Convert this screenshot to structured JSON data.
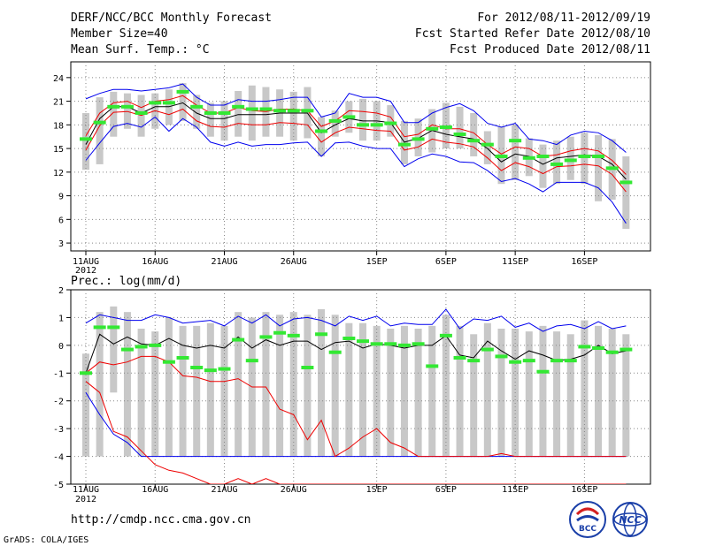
{
  "header": {
    "title": "DERF/NCC/BCC Monthly Forecast",
    "member_size": "Member Size=40",
    "variable": "Mean Surf. Temp.: °C",
    "forecast_period": "For 2012/08/11-2012/09/19",
    "fcst_started": "Fcst Started Refer Date 2012/08/10",
    "fcst_produced": "Fcst Produced Date 2012/08/11"
  },
  "footer": {
    "url": "http://cmdp.ncc.cma.gov.cn",
    "grads": "GrADS: COLA/IGES",
    "logo_bcc": "BCC",
    "logo_ncc": "NCC"
  },
  "colors": {
    "bar": "#c8c8c8",
    "mean": "#000000",
    "max_min": "#0000ee",
    "spread": "#ee0000",
    "obs": "#33e833",
    "grid": "#888888"
  },
  "chart_data": [
    {
      "type": "line",
      "title": "Mean Surf. Temp.: °C",
      "x_tick_labels": [
        "11AUG",
        "16AUG",
        "21AUG",
        "26AUG",
        "1SEP",
        "6SEP",
        "11SEP",
        "16SEP"
      ],
      "x_tick_days": [
        1,
        6,
        11,
        16,
        22,
        27,
        32,
        37
      ],
      "year_label": "2012",
      "y_ticks": [
        3,
        6,
        9,
        12,
        15,
        18,
        21,
        24
      ],
      "ylim": [
        2,
        26
      ],
      "days": [
        1,
        2,
        3,
        4,
        5,
        6,
        7,
        8,
        9,
        10,
        11,
        12,
        13,
        14,
        15,
        16,
        17,
        18,
        19,
        20,
        21,
        22,
        23,
        24,
        25,
        26,
        27,
        28,
        29,
        30,
        31,
        32,
        33,
        34,
        35,
        36,
        37,
        38,
        39,
        40
      ],
      "series": [
        {
          "name": "max",
          "values": [
            21.3,
            22,
            22.5,
            22.5,
            22.3,
            22.5,
            22.7,
            23.2,
            21.5,
            20.5,
            20.5,
            21.2,
            21,
            21,
            21.2,
            21.5,
            21.5,
            19,
            19.5,
            22,
            21.5,
            21.5,
            21,
            18.3,
            18.3,
            19.5,
            20.2,
            20.7,
            19.8,
            18.2,
            17.7,
            18.2,
            16.2,
            16,
            15.5,
            16.7,
            17.2,
            17,
            16,
            14.5
          ]
        },
        {
          "name": "spread_upper",
          "values": [
            16.6,
            19.5,
            20.8,
            21,
            20.2,
            21,
            21.2,
            21.7,
            20.5,
            19.5,
            19.5,
            20.2,
            19.8,
            19.7,
            20,
            20,
            19.8,
            17.8,
            18.5,
            19.8,
            19.7,
            19.5,
            19,
            16.5,
            16.8,
            18,
            17.5,
            17.5,
            17,
            15.5,
            14.3,
            15.2,
            15,
            14,
            14.2,
            14.7,
            15,
            14.7,
            13.5,
            11.7
          ]
        },
        {
          "name": "mean",
          "values": [
            15.5,
            18.8,
            20.3,
            20.3,
            19.5,
            20.3,
            20.3,
            20.8,
            19.5,
            18.8,
            18.8,
            19.3,
            19.3,
            19.3,
            19.5,
            19.5,
            19.5,
            17,
            18,
            18.8,
            18.5,
            18.5,
            18.3,
            15.8,
            16.3,
            17.3,
            16.8,
            16.5,
            16.2,
            15,
            13.3,
            14.3,
            14,
            13,
            13.8,
            14,
            14.2,
            14,
            13,
            11.1
          ]
        },
        {
          "name": "spread_lower",
          "values": [
            14.8,
            17.9,
            19.6,
            19.7,
            19.2,
            19.8,
            19.3,
            20,
            18.5,
            17.8,
            17.7,
            18.2,
            18,
            18,
            18.3,
            18.2,
            18,
            15.8,
            17,
            17.7,
            17.5,
            17.3,
            17.2,
            14.8,
            15.2,
            16.2,
            15.8,
            15.6,
            15.2,
            13.8,
            12.2,
            13.2,
            12.7,
            11.8,
            12.7,
            12.8,
            13,
            12.8,
            11.7,
            9.5
          ]
        },
        {
          "name": "min",
          "values": [
            13.5,
            15.7,
            17.8,
            18.2,
            17.7,
            19,
            17.2,
            18.8,
            17.7,
            15.8,
            15.3,
            15.8,
            15.3,
            15.5,
            15.5,
            15.7,
            15.8,
            14,
            15.7,
            15.8,
            15.3,
            15,
            15,
            12.7,
            13.7,
            14.3,
            14,
            13.3,
            13.2,
            12.2,
            10.8,
            11.2,
            10.5,
            9.5,
            10.7,
            10.7,
            10.7,
            10,
            8.2,
            5.5
          ]
        },
        {
          "name": "observed",
          "values": [
            16.2,
            18.3,
            20.3,
            20.3,
            19.5,
            20.8,
            20.8,
            22.2,
            20.3,
            19.5,
            19.5,
            20.3,
            20,
            20,
            19.8,
            19.8,
            19.8,
            17.2,
            18.5,
            19,
            18,
            18,
            18.2,
            15.5,
            16.2,
            17.5,
            17.7,
            16.8,
            16,
            15.5,
            14,
            16,
            13.8,
            14,
            13,
            13.5,
            14,
            14,
            12.5,
            10.7
          ]
        }
      ],
      "bar_ranges": [
        [
          12.3,
          19.5
        ],
        [
          13,
          21.5
        ],
        [
          16.5,
          22.2
        ],
        [
          17.5,
          22
        ],
        [
          16.5,
          21.8
        ],
        [
          17.5,
          22
        ],
        [
          18,
          22.5
        ],
        [
          18.5,
          23.3
        ],
        [
          17.5,
          21.8
        ],
        [
          16.5,
          20.8
        ],
        [
          16,
          21
        ],
        [
          16.5,
          22.3
        ],
        [
          16,
          23
        ],
        [
          16.5,
          22.8
        ],
        [
          16.5,
          22.5
        ],
        [
          16,
          22.2
        ],
        [
          16.3,
          22.8
        ],
        [
          14,
          19
        ],
        [
          16.5,
          19.8
        ],
        [
          17,
          21
        ],
        [
          16,
          21.3
        ],
        [
          16,
          21
        ],
        [
          16.5,
          20.5
        ],
        [
          13,
          18.5
        ],
        [
          14,
          18.8
        ],
        [
          14.5,
          20
        ],
        [
          15,
          20.8
        ],
        [
          15,
          20.3
        ],
        [
          14,
          19.5
        ],
        [
          13,
          17.2
        ],
        [
          10.5,
          17.8
        ],
        [
          11,
          18
        ],
        [
          11.5,
          16.3
        ],
        [
          10,
          15.5
        ],
        [
          10.5,
          16
        ],
        [
          11,
          16.5
        ],
        [
          10.5,
          17
        ],
        [
          8.3,
          16.7
        ],
        [
          8.5,
          16.2
        ],
        [
          4.8,
          14
        ]
      ]
    },
    {
      "type": "line",
      "title": "Prec.: log(mm/d)",
      "x_tick_labels": [
        "11AUG",
        "16AUG",
        "21AUG",
        "26AUG",
        "1SEP",
        "6SEP",
        "11SEP",
        "16SEP"
      ],
      "x_tick_days": [
        1,
        6,
        11,
        16,
        22,
        27,
        32,
        37
      ],
      "year_label": "2012",
      "y_ticks": [
        -5,
        -4,
        -3,
        -2,
        -1,
        0,
        1,
        2
      ],
      "ylim": [
        -5,
        2
      ],
      "days": [
        1,
        2,
        3,
        4,
        5,
        6,
        7,
        8,
        9,
        10,
        11,
        12,
        13,
        14,
        15,
        16,
        17,
        18,
        19,
        20,
        21,
        22,
        23,
        24,
        25,
        26,
        27,
        28,
        29,
        30,
        31,
        32,
        33,
        34,
        35,
        36,
        37,
        38,
        39,
        40
      ],
      "series": [
        {
          "name": "max",
          "values": [
            0.8,
            1.1,
            1,
            0.9,
            0.9,
            1.1,
            1,
            0.8,
            0.85,
            0.9,
            0.7,
            1.05,
            0.8,
            1.1,
            0.7,
            0.95,
            1,
            0.9,
            0.7,
            1.05,
            0.9,
            1.05,
            0.7,
            0.8,
            0.75,
            0.75,
            1.3,
            0.6,
            0.95,
            0.9,
            1.05,
            0.65,
            0.8,
            0.5,
            0.7,
            0.75,
            0.6,
            0.85,
            0.6,
            0.7
          ]
        },
        {
          "name": "mean",
          "values": [
            -1,
            0.4,
            0.05,
            0.3,
            0.05,
            0,
            0.25,
            0,
            -0.1,
            0,
            -0.1,
            0.3,
            -0.1,
            0.2,
            0,
            0.15,
            0.15,
            -0.15,
            0.1,
            0.15,
            -0.1,
            0.05,
            0,
            -0.1,
            0,
            0,
            0.35,
            -0.35,
            -0.45,
            0.15,
            -0.2,
            -0.5,
            -0.2,
            -0.35,
            -0.55,
            -0.5,
            -0.35,
            0,
            -0.3,
            -0.2
          ]
        },
        {
          "name": "min",
          "values": [
            -1.7,
            -2.5,
            -3.2,
            -3.5,
            -4,
            -4,
            -4,
            -4,
            -4,
            -4,
            -4,
            -4,
            -4,
            -4,
            -4,
            -4,
            -4,
            -4,
            -4,
            -4,
            -4,
            -4,
            -4,
            -4,
            -4,
            -4,
            -4,
            -4,
            -4,
            -4,
            -4,
            -4,
            -4,
            -4,
            -4,
            -4,
            -4,
            -4,
            -4,
            -4
          ]
        },
        {
          "name": "spread_lower",
          "values": [
            -1.3,
            -1.7,
            -3.1,
            -3.3,
            -3.8,
            -4.3,
            -4.5,
            -4.6,
            -4.8,
            -5,
            -5,
            -4.8,
            -5,
            -4.8,
            -5,
            -5,
            -5,
            -5,
            -5,
            -5,
            -5,
            -5,
            -5,
            -5,
            -5,
            -5,
            -5,
            -5,
            -5,
            -5,
            -5,
            -5,
            -5,
            -5,
            -5,
            -5,
            -5,
            -5,
            -5,
            -5
          ]
        },
        {
          "name": "spread_upper",
          "values": [
            -1,
            -0.6,
            -0.7,
            -0.6,
            -0.4,
            -0.4,
            -0.6,
            -1.1,
            -1.15,
            -1.3,
            -1.3,
            -1.2,
            -1.5,
            -1.5,
            -2.3,
            -2.5,
            -3.4,
            -2.7,
            -4,
            -3.7,
            -3.3,
            -3,
            -3.5,
            -3.7,
            -4,
            -4,
            -4,
            -4,
            -4,
            -4,
            -3.9,
            -4,
            -4,
            -4,
            -4,
            -4,
            -4,
            -4,
            -4,
            -4
          ]
        },
        {
          "name": "observed",
          "values": [
            -1,
            0.65,
            0.65,
            -0.15,
            -0.05,
            0,
            -0.6,
            -0.45,
            -0.8,
            -0.9,
            -0.85,
            0.2,
            -0.55,
            0.3,
            0.45,
            0.35,
            -0.8,
            0.4,
            -0.25,
            0.25,
            0.15,
            0.05,
            0.05,
            0,
            0.05,
            -0.75,
            0.35,
            -0.45,
            -0.55,
            -0.15,
            -0.4,
            -0.6,
            -0.55,
            -0.95,
            -0.55,
            -0.55,
            -0.05,
            -0.1,
            -0.25,
            -0.15
          ]
        }
      ],
      "bar_ranges": [
        [
          -4,
          -0.3
        ],
        [
          -4,
          1.2
        ],
        [
          -1.7,
          1.4
        ],
        [
          -4,
          1.2
        ],
        [
          -4,
          0.6
        ],
        [
          -4,
          0.5
        ],
        [
          -4,
          1
        ],
        [
          -4,
          0.7
        ],
        [
          -4,
          0.7
        ],
        [
          -4,
          0.8
        ],
        [
          -4,
          0.7
        ],
        [
          -4,
          1.2
        ],
        [
          -4,
          1
        ],
        [
          -4,
          1.2
        ],
        [
          -4,
          1.1
        ],
        [
          -4,
          1.2
        ],
        [
          -4,
          1.1
        ],
        [
          -4,
          1.3
        ],
        [
          -4,
          1.1
        ],
        [
          -4,
          0.8
        ],
        [
          -4,
          0.8
        ],
        [
          -4,
          0.7
        ],
        [
          -4,
          0.6
        ],
        [
          -4,
          0.7
        ],
        [
          -4,
          0.6
        ],
        [
          -4,
          0.7
        ],
        [
          -4,
          1.1
        ],
        [
          -4,
          0.7
        ],
        [
          -4,
          0.4
        ],
        [
          -4,
          0.8
        ],
        [
          -4,
          0.6
        ],
        [
          -4,
          0.6
        ],
        [
          -4,
          0.5
        ],
        [
          -4,
          0.7
        ],
        [
          -4,
          0.5
        ],
        [
          -4,
          0.4
        ],
        [
          -4,
          0.9
        ],
        [
          -4,
          0.7
        ],
        [
          -4,
          0.6
        ],
        [
          -4,
          0.4
        ]
      ]
    }
  ]
}
